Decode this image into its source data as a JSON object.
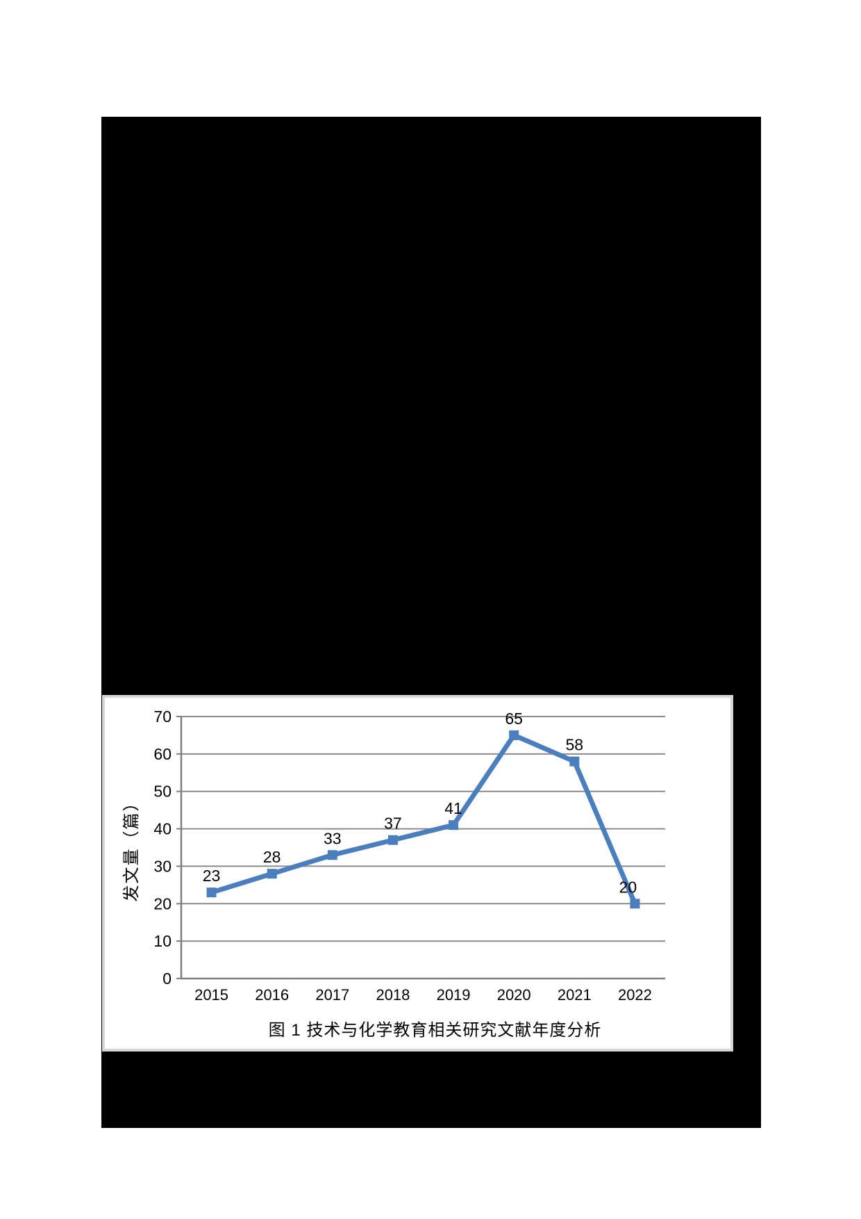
{
  "document": {
    "page_background": "#ffffff",
    "content_area_background": "#000000"
  },
  "figure": {
    "background": "#ffffff",
    "border_color": "#d6d6d6",
    "caption": "图 1 技术与化学教育相关研究文献年度分析"
  },
  "chart_data": {
    "type": "line",
    "title": "",
    "categories": [
      "2015",
      "2016",
      "2017",
      "2018",
      "2019",
      "2020",
      "2021",
      "2022"
    ],
    "series": [
      {
        "name": "发文量",
        "values": [
          23,
          28,
          33,
          37,
          41,
          65,
          58,
          20
        ]
      }
    ],
    "data_labels": [
      "23",
      "28",
      "33",
      "37",
      "41",
      "65",
      "58",
      "20"
    ],
    "xlabel": "",
    "ylabel": "发文量（篇）",
    "ylim": [
      0,
      70
    ],
    "y_ticks": [
      "0",
      "10",
      "20",
      "30",
      "40",
      "50",
      "60",
      "70"
    ],
    "grid": "horizontal",
    "legend": "none",
    "marker": "square",
    "colors": {
      "line": "#4a7ebc",
      "marker": "#4a7ebc",
      "grid": "#8c8c8c",
      "axis": "#7f7f7f",
      "text": "#000000"
    }
  }
}
